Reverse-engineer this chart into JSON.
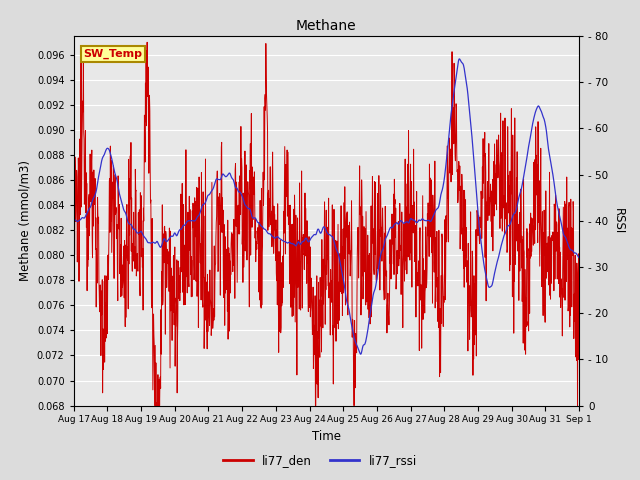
{
  "title": "Methane",
  "xlabel": "Time",
  "ylabel_left": "Methane (mmol/m3)",
  "ylabel_right": "RSSI",
  "ylim_left": [
    0.068,
    0.0975
  ],
  "ylim_right": [
    0,
    80
  ],
  "yticks_left": [
    0.068,
    0.07,
    0.072,
    0.074,
    0.076,
    0.078,
    0.08,
    0.082,
    0.084,
    0.086,
    0.088,
    0.09,
    0.092,
    0.094,
    0.096
  ],
  "yticks_right": [
    0,
    10,
    20,
    30,
    40,
    50,
    60,
    70,
    80
  ],
  "color_red": "#CC0000",
  "color_blue": "#3333CC",
  "bg_color": "#DCDCDC",
  "plot_bg": "#E8E8E8",
  "grid_color": "#FFFFFF",
  "legend_label_red": "li77_den",
  "legend_label_blue": "li77_rssi",
  "annotation_text": "SW_Temp",
  "annotation_color": "#CC0000",
  "annotation_bg": "#FFFF99",
  "annotation_border": "#AA8800",
  "xtick_labels": [
    "Aug 17",
    "Aug 18",
    "Aug 19",
    "Aug 20",
    "Aug 21",
    "Aug 22",
    "Aug 23",
    "Aug 24",
    "Aug 25",
    "Aug 26",
    "Aug 27",
    "Aug 28",
    "Aug 29",
    "Aug 30",
    "Aug 31",
    "Sep 1"
  ]
}
